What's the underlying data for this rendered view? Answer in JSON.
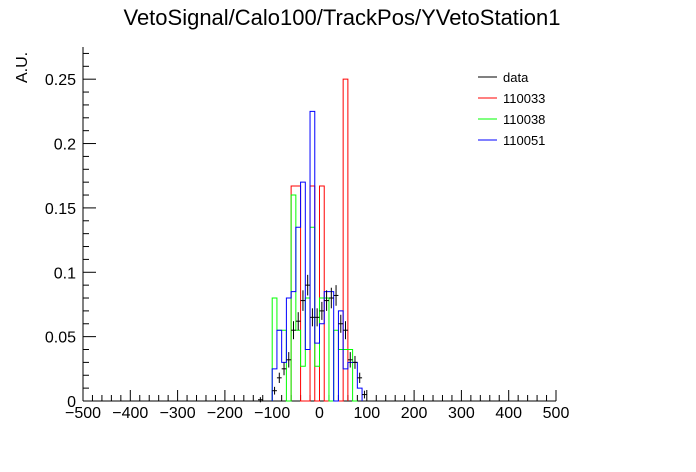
{
  "chart_data": {
    "type": "histogram",
    "title": "VetoSignal/Calo100/TrackPos/YVetoStation1",
    "xlabel": "",
    "ylabel": "A.U.",
    "xlim": [
      -500,
      500
    ],
    "ylim": [
      0,
      0.275
    ],
    "x_ticks": [
      -500,
      -400,
      -300,
      -200,
      -100,
      0,
      100,
      200,
      300,
      400,
      500
    ],
    "x_tick_labels": [
      "−500",
      "−400",
      "−300",
      "−200",
      "−100",
      "0",
      "100",
      "200",
      "300",
      "400",
      "500"
    ],
    "y_ticks": [
      0,
      0.05,
      0.1,
      0.15,
      0.2,
      0.25
    ],
    "y_tick_labels": [
      "0",
      "0.05",
      "0.1",
      "0.15",
      "0.2",
      "0.25"
    ],
    "grid": false,
    "legend_position": "top-right",
    "bin_width": 10,
    "data": {
      "name": "data",
      "color": "#000000",
      "x": [
        -125,
        -95,
        -85,
        -75,
        -65,
        -55,
        -45,
        -35,
        -25,
        -15,
        -5,
        5,
        15,
        25,
        35,
        45,
        55,
        65,
        75,
        85,
        95
      ],
      "y": [
        0.001,
        0.008,
        0.018,
        0.025,
        0.032,
        0.055,
        0.062,
        0.078,
        0.09,
        0.065,
        0.065,
        0.07,
        0.078,
        0.08,
        0.082,
        0.06,
        0.055,
        0.032,
        0.03,
        0.018,
        0.005
      ],
      "yerr": [
        0.002,
        0.003,
        0.004,
        0.005,
        0.006,
        0.007,
        0.007,
        0.008,
        0.008,
        0.007,
        0.007,
        0.007,
        0.008,
        0.008,
        0.008,
        0.007,
        0.007,
        0.006,
        0.005,
        0.004,
        0.003
      ]
    },
    "series": [
      {
        "name": "110033",
        "color": "#ff0000",
        "edges": [
          -60,
          -50,
          -40,
          -30,
          -20,
          -10,
          0,
          10,
          40,
          50,
          60
        ],
        "values": [
          0.167,
          0.167,
          0,
          0,
          0.167,
          0,
          0.167,
          0,
          0,
          0.25
        ]
      },
      {
        "name": "110038",
        "color": "#00ff00",
        "edges": [
          -100,
          -90,
          -80,
          -70,
          -60,
          -50,
          -40,
          -30,
          -20,
          -10,
          0,
          10,
          20,
          30,
          40,
          50,
          60,
          70,
          80
        ],
        "values": [
          0.08,
          0.055,
          0.055,
          0.0,
          0.16,
          0.055,
          0.027,
          0.08,
          0.135,
          0.027,
          0.08,
          0.08,
          0.0,
          0.055,
          0.04,
          0.04,
          0.04,
          0.0
        ]
      },
      {
        "name": "110051",
        "color": "#0000ff",
        "edges": [
          -100,
          -90,
          -80,
          -70,
          -60,
          -50,
          -40,
          -30,
          -20,
          -10,
          0,
          10,
          20,
          30,
          40,
          50,
          60,
          70,
          80,
          90
        ],
        "values": [
          0.025,
          0.055,
          0.03,
          0.08,
          0.085,
          0.135,
          0.17,
          0.04,
          0.225,
          0.045,
          0.06,
          0.085,
          0.085,
          0.0,
          0.07,
          0.025,
          0.03,
          0.03,
          0.01
        ]
      }
    ]
  }
}
